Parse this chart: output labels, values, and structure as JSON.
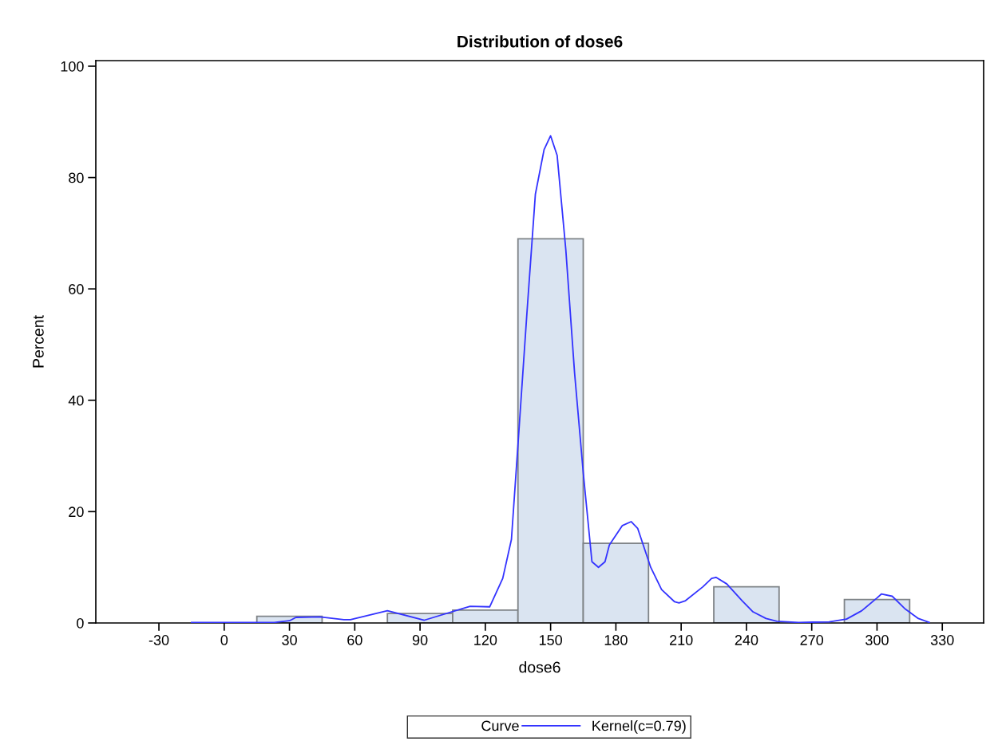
{
  "chart_data": {
    "type": "histogram",
    "title": "Distribution of dose6",
    "xlabel": "dose6",
    "ylabel": "Percent",
    "bins": [
      -15,
      15,
      45,
      75,
      105,
      135,
      165,
      195,
      225,
      255,
      285,
      315
    ],
    "values": [
      null,
      1.2,
      0,
      1.7,
      2.3,
      69,
      14.3,
      0,
      6.5,
      null,
      4.2
    ],
    "color": "#dae4f1",
    "xlim": [
      -59,
      349
    ],
    "ylim": [
      0,
      101
    ],
    "xticks": [
      -30,
      0,
      30,
      60,
      90,
      120,
      150,
      180,
      210,
      240,
      270,
      300,
      330
    ],
    "yticks": [
      0,
      20,
      40,
      60,
      80,
      100
    ],
    "legend_title": "Curve",
    "legend": "bottom",
    "grid": false,
    "series": [
      {
        "type": "line",
        "name": "Kernel(c=0.79)",
        "color": "#3333ff",
        "x": [
          -15,
          0,
          23,
          30,
          33,
          44,
          55,
          58,
          75,
          92,
          113,
          122,
          128,
          132,
          135,
          139,
          143,
          147,
          150,
          153,
          157,
          161,
          165,
          169,
          172,
          175,
          177,
          183,
          187,
          190,
          196,
          201,
          207,
          209,
          212,
          220,
          224,
          226,
          231,
          238,
          243,
          249,
          254,
          264,
          278,
          286,
          293,
          300,
          302,
          307,
          313,
          319,
          324
        ],
        "values": [
          0.1,
          0.1,
          0.1,
          0.4,
          1.0,
          1.1,
          0.6,
          0.6,
          2.2,
          0.5,
          3.0,
          2.9,
          8,
          15,
          32,
          55,
          77,
          85,
          87.5,
          84,
          67,
          45,
          27,
          11,
          10,
          11,
          14,
          17.5,
          18.2,
          17,
          10,
          6,
          3.8,
          3.6,
          4,
          6.5,
          8,
          8.2,
          7,
          4,
          2,
          0.8,
          0.3,
          0.1,
          0.2,
          0.7,
          2.2,
          4.5,
          5.2,
          4.8,
          2.5,
          0.8,
          0.1
        ]
      }
    ]
  }
}
